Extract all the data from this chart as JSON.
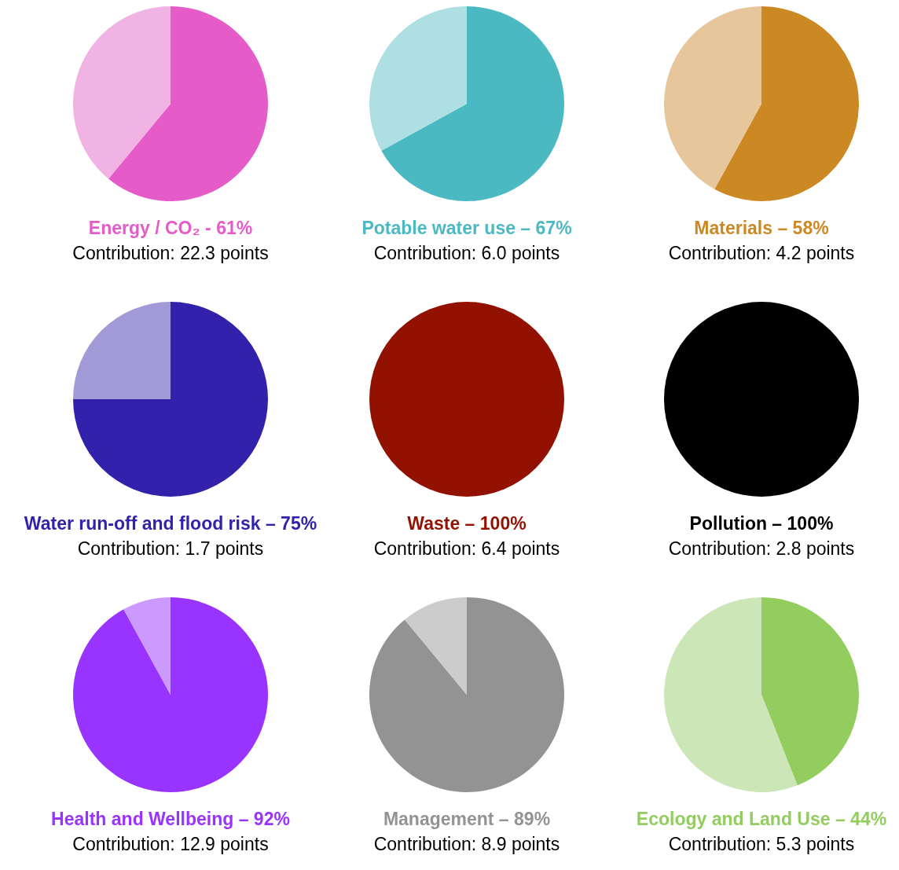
{
  "chart_data": [
    {
      "type": "pie",
      "title": "Energy / CO₂ - 61%",
      "subtitle": "Contribution: 22.3 points",
      "categories": [
        null,
        null
      ],
      "values": [
        61,
        39
      ],
      "colors": [
        "#e55cc9",
        "#f0b3e3"
      ]
    },
    {
      "type": "pie",
      "title": "Potable water use – 67%",
      "subtitle": "Contribution: 6.0 points",
      "categories": [
        null,
        null
      ],
      "values": [
        67,
        33
      ],
      "colors": [
        "#4bb9c2",
        "#aedfe3"
      ]
    },
    {
      "type": "pie",
      "title": "Materials – 58%",
      "subtitle": "Contribution: 4.2 points",
      "categories": [
        null,
        null
      ],
      "values": [
        58,
        42
      ],
      "colors": [
        "#cc8822",
        "#e8c69c"
      ]
    },
    {
      "type": "pie",
      "title": "Water run-off and flood risk – 75%",
      "subtitle": "Contribution: 1.7 points",
      "categories": [
        null,
        null
      ],
      "values": [
        75,
        25
      ],
      "colors": [
        "#3121ab",
        "#a29ad6"
      ]
    },
    {
      "type": "pie",
      "title": "Waste – 100%",
      "subtitle": "Contribution: 6.4 points",
      "categories": [
        null,
        null
      ],
      "values": [
        100,
        0
      ],
      "colors": [
        "#931100",
        "#d9a299"
      ]
    },
    {
      "type": "pie",
      "title": "Pollution – 100%",
      "subtitle": "Contribution: 2.8 points",
      "categories": [
        null,
        null
      ],
      "values": [
        100,
        0
      ],
      "colors": [
        "#000000",
        "#999999"
      ]
    },
    {
      "type": "pie",
      "title": "Health and Wellbeing – 92%",
      "subtitle": "Contribution: 12.9 points",
      "categories": [
        null,
        null
      ],
      "values": [
        92,
        8
      ],
      "colors": [
        "#9933ff",
        "#cc99ff"
      ]
    },
    {
      "type": "pie",
      "title": "Management – 89%",
      "subtitle": "Contribution: 8.9 points",
      "categories": [
        null,
        null
      ],
      "values": [
        89,
        11
      ],
      "colors": [
        "#939393",
        "#cccccc"
      ]
    },
    {
      "type": "pie",
      "title": "Ecology and Land Use – 44%",
      "subtitle": "Contribution: 5.3 points",
      "categories": [
        null,
        null
      ],
      "values": [
        44,
        56
      ],
      "colors": [
        "#93cc5f",
        "#cde6b8"
      ]
    }
  ]
}
